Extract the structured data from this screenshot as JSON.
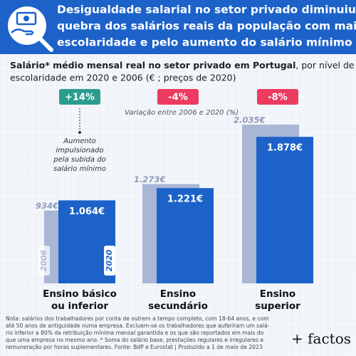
{
  "chart_data": {
    "type": "bar",
    "title": [
      "Desigualdade salarial no setor privado diminuiu pela",
      "quebra dos salários reais da população com mais",
      "escolaridade e pelo aumento do salário mínimo"
    ],
    "subtitle_bold": "Salário* médio mensal real no setor privado em Portugal",
    "subtitle": [
      ", por nível de",
      "escolaridade em 2020 e 2006 (€ ; preços de 2020)"
    ],
    "categories": [
      [
        "Ensino básico",
        "ou inferior"
      ],
      [
        "Ensino",
        "secundário"
      ],
      [
        "Ensino",
        "superior"
      ]
    ],
    "series": [
      {
        "name": "2006",
        "color": "#a9b6d6",
        "values": [
          934,
          1273,
          2035
        ],
        "value_labels": [
          "934€",
          "1.273€",
          "2.035€"
        ]
      },
      {
        "name": "2020",
        "color": "#1c62c9",
        "values": [
          1064,
          1221,
          1878
        ],
        "value_labels": [
          "1.064€",
          "1.221€",
          "1.878€"
        ]
      }
    ],
    "changes": [
      14,
      -4,
      -8
    ],
    "change_labels": [
      "+14%",
      "-4%",
      "-8%"
    ],
    "change_colors": {
      "up": "#2a9d8f",
      "down": "#ec3b60"
    },
    "change_caption": "Variação entre 2006 e 2020 (%)",
    "annotation": [
      "Aumento",
      "impulsionado",
      "pela subida do",
      "salário mínimo"
    ],
    "note": [
      "Nota: salários dos trabalhadores por conta de outrem a tempo completo, com 18-64 anos, e com",
      "até 50 anos de antiguidade numa empresa. Excluem-se os trabalhadores que auferiram um salá-",
      "rio inferior a 80% da retribuição mínima mensal garantida e os que são reportados em mais do",
      "que uma empresa no mesmo ano. * Soma do salário base, prestações regulares e irregulares e",
      "remuneração por horas suplementares. Fonte: BdP e Eurostat | Produzido a 1 de maio de 2023"
    ],
    "logo": "+ factos"
  }
}
